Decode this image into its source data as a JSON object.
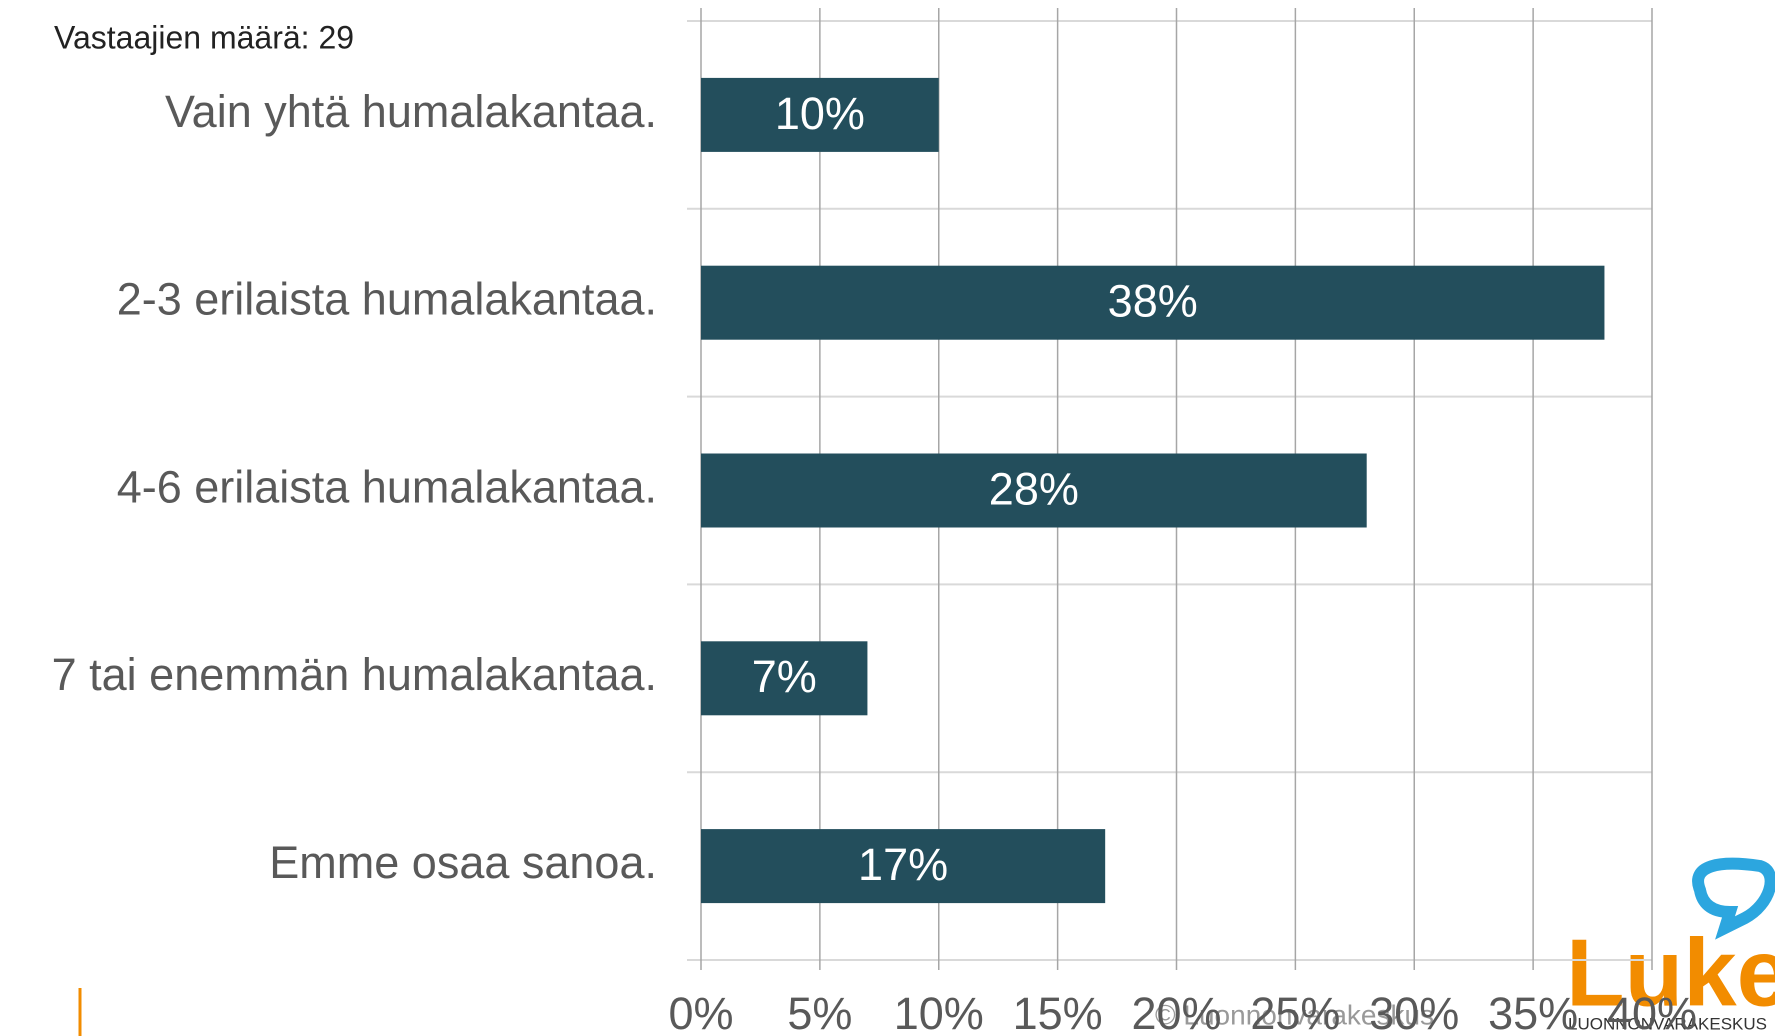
{
  "chart_data": {
    "type": "bar",
    "orientation": "horizontal",
    "subtitle": "Vastaajien määrä: 29",
    "categories": [
      "Vain yhtä humalakantaa.",
      "2-3 erilaista humalakantaa.",
      "4-6 erilaista humalakantaa.",
      "7 tai enemmän humalakantaa.",
      "Emme osaa sanoa."
    ],
    "values": [
      10,
      38,
      28,
      7,
      17
    ],
    "value_labels": [
      "10%",
      "38%",
      "28%",
      "7%",
      "17%"
    ],
    "color": "#234e5c",
    "xlim": [
      0,
      40
    ],
    "xticks": [
      {
        "value": 0,
        "label": "0%"
      },
      {
        "value": 5,
        "label": "5%"
      },
      {
        "value": 10,
        "label": "10%"
      },
      {
        "value": 15,
        "label": "15%"
      },
      {
        "value": 20,
        "label": "20%"
      },
      {
        "value": 25,
        "label": "25%"
      },
      {
        "value": 30,
        "label": "30%"
      },
      {
        "value": 35,
        "label": "35%"
      },
      {
        "value": 40,
        "label": "40%"
      }
    ],
    "grid": true
  },
  "footer": {
    "copyright": "© Luonnonvarakeskus",
    "logo": "Luke",
    "logo_subtitle": "LUONNONVARAKESKUS"
  }
}
